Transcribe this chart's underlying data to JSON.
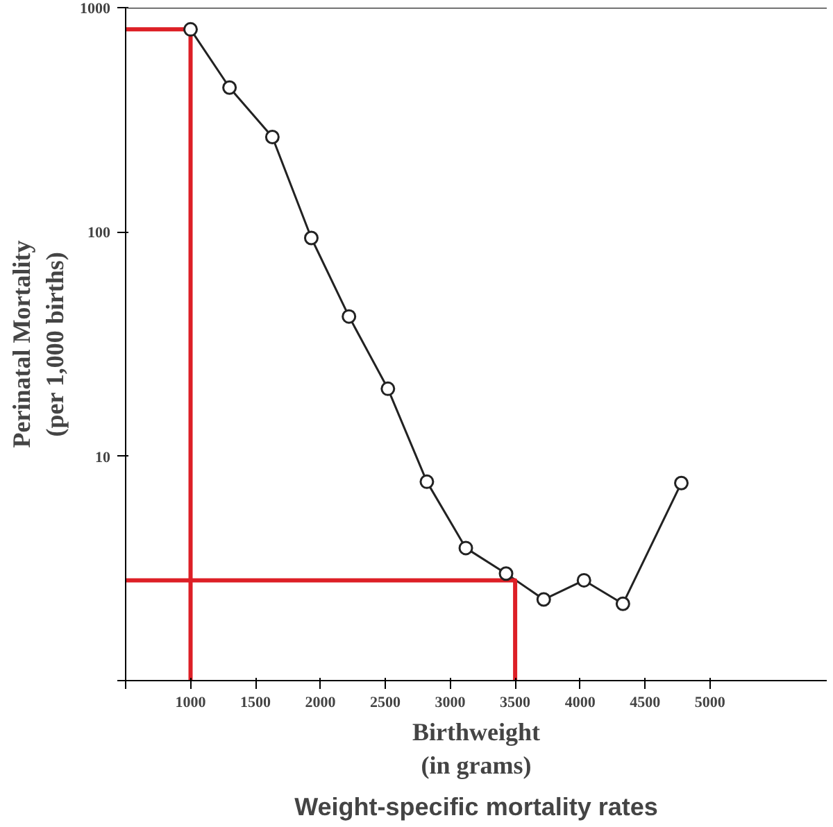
{
  "chart_data": {
    "type": "line",
    "title": "Weight-specific mortality rates",
    "xlabel": "Birthweight\n(in grams)",
    "ylabel": "Perinatal Mortality\n(per 1,000 births)",
    "series": [
      {
        "color": "#222222",
        "x": [
          1000,
          1300,
          1630,
          1930,
          2220,
          2520,
          2820,
          3120,
          3430,
          3720,
          4030,
          4330,
          4780
        ],
        "values": [
          800,
          440,
          265,
          94,
          42,
          20,
          7.7,
          3.9,
          3.0,
          2.3,
          2.8,
          2.2,
          7.6
        ],
        "marker": "circle"
      },
      {
        "color": "#dd1f26",
        "x": [
          500,
          1000,
          1000
        ],
        "values": [
          800,
          800,
          1
        ],
        "marker": "none"
      },
      {
        "color": "#dd1f26",
        "x": [
          500,
          3500,
          3500
        ],
        "values": [
          2.8,
          2.8,
          1
        ],
        "marker": "none"
      }
    ],
    "log": "y",
    "grid": false,
    "xlim": [
      500,
      5900
    ],
    "ylim": [
      1,
      1000
    ],
    "xticks": [
      {
        "value": 500,
        "label": null
      },
      1000,
      1500,
      2000,
      2500,
      3000,
      3500,
      4000,
      4500,
      5000
    ],
    "yticks": [
      {
        "value": 1,
        "label": null
      },
      10,
      100,
      1000
    ]
  }
}
